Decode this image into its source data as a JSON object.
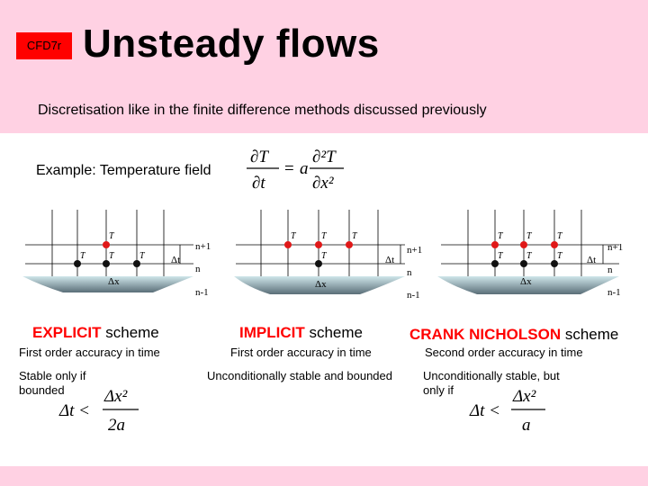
{
  "header": {
    "badge": "CFD7r",
    "title": "Unsteady flows",
    "subtitle": "Discretisation like in the finite difference methods discussed previously"
  },
  "example": {
    "label": "Example: Temperature field",
    "equation": {
      "lhs_num": "∂T",
      "lhs_den": "∂t",
      "eq": "=",
      "coef": "a",
      "rhs_num": "∂²T",
      "rhs_den": "∂x²"
    }
  },
  "grid_labels": {
    "level_next": "n+1",
    "level_now": "n",
    "level_prev": "n-1",
    "dt": "Δt",
    "dx": "Δx",
    "node_P_next": "T",
    "node_labels": [
      "T",
      "T",
      "T"
    ]
  },
  "schemes": [
    {
      "name_em": "EXPLICIT",
      "name_rest": " scheme",
      "accuracy": "First order accuracy in time",
      "note": "Stable only if bounded",
      "formula": {
        "lhs": "Δt <",
        "num": "Δx²",
        "den": "2a"
      }
    },
    {
      "name_em": "IMPLICIT",
      "name_rest": " scheme",
      "accuracy": "First order accuracy in time",
      "note": "Unconditionally stable and bounded",
      "formula": null
    },
    {
      "name_em": "CRANK NICHOLSON",
      "name_rest": " scheme",
      "accuracy": "Second order accuracy in time",
      "note": "Unconditionally stable, but only if",
      "formula": {
        "lhs": "Δt <",
        "num": "Δx²",
        "den": "a"
      }
    }
  ],
  "colors": {
    "band": "#ffd1e3",
    "badge": "#ff0000",
    "node_red": "#e01818",
    "node_black": "#111111",
    "wall_top": "#cfe6ea",
    "wall_bottom": "#5a6e78"
  }
}
